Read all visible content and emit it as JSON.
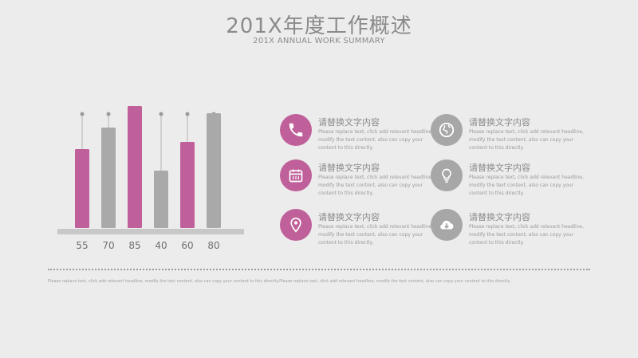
{
  "header": {
    "title": "201X年度工作概述",
    "subtitle": "201X ANNUAL WORK SUMMARY"
  },
  "chart_data": {
    "type": "bar",
    "values": [
      55,
      70,
      85,
      40,
      60,
      80
    ],
    "data_labels": [
      "55",
      "70",
      "85",
      "40",
      "60",
      "80"
    ],
    "bar_colors": [
      "#c0609a",
      "#a9a9a9",
      "#c0609a",
      "#a9a9a9",
      "#c0609a",
      "#a9a9a9"
    ],
    "ylim": [
      0,
      100
    ],
    "grid": false,
    "legend": "none"
  },
  "items": [
    {
      "heading": "请替换文字内容",
      "text": "Please replace text, click add relevant headline, modify the text content, also can copy your content to this directly.",
      "icon": "phone-icon",
      "color": "pink"
    },
    {
      "heading": "请替换文字内容",
      "text": "Please replace text, click add relevant headline, modify the text content, also can copy your content to this directly.",
      "icon": "globe-icon",
      "color": "gray"
    },
    {
      "heading": "请替换文字内容",
      "text": "Please replace text, click add relevant headline, modify the text content, also can copy your content to this directly.",
      "icon": "calendar-icon",
      "color": "pink"
    },
    {
      "heading": "请替换文字内容",
      "text": "Please replace text, click add relevant headline, modify the text content, also can copy your content to this directly.",
      "icon": "lightbulb-icon",
      "color": "gray"
    },
    {
      "heading": "请替换文字内容",
      "text": "Please replace text, click add relevant headline, modify the text content, also can copy your content to this directly.",
      "icon": "location-pin-icon",
      "color": "pink"
    },
    {
      "heading": "请替换文字内容",
      "text": "Please replace text, click add relevant headline, modify the text content, also can copy your content to this directly.",
      "icon": "cloud-download-icon",
      "color": "gray"
    }
  ],
  "footer": {
    "text": "Please replace text, click add relevant headline, modify the text content, also can copy your content to this directly.Please replace text, click add relevant headline, modify the text content, also can copy your content to this directly."
  }
}
